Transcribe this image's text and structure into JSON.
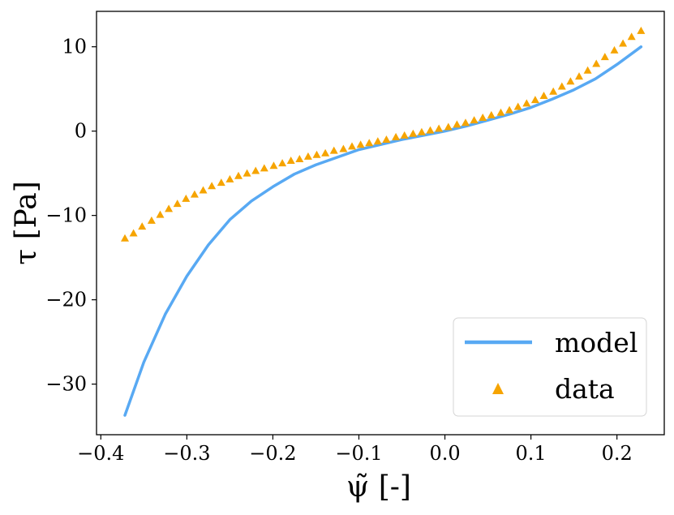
{
  "chart_data": {
    "type": "line",
    "title": "",
    "xlabel": "ψ̃ [-]",
    "ylabel": "τ [Pa]",
    "xlim": [
      -0.405,
      0.255
    ],
    "ylim": [
      -36,
      14.2
    ],
    "xticks": [
      -0.4,
      -0.3,
      -0.2,
      -0.1,
      0.0,
      0.1,
      0.2
    ],
    "xtick_labels": [
      "−0.4",
      "−0.3",
      "−0.2",
      "−0.1",
      "0.0",
      "0.1",
      "0.2"
    ],
    "yticks": [
      -30,
      -20,
      -10,
      0,
      10
    ],
    "ytick_labels": [
      "−30",
      "−20",
      "−10",
      "0",
      "10"
    ],
    "grid": false,
    "legend_position": "bottom-right",
    "series": [
      {
        "name": "model",
        "kind": "line",
        "color": "#58a9f3",
        "x": [
          -0.372,
          -0.35,
          -0.325,
          -0.3,
          -0.275,
          -0.25,
          -0.225,
          -0.2,
          -0.175,
          -0.15,
          -0.125,
          -0.1,
          -0.075,
          -0.05,
          -0.025,
          0.0,
          0.025,
          0.05,
          0.075,
          0.1,
          0.125,
          0.15,
          0.175,
          0.2,
          0.228
        ],
        "y": [
          -33.7,
          -27.4,
          -21.7,
          -17.2,
          -13.5,
          -10.5,
          -8.3,
          -6.6,
          -5.1,
          -4.0,
          -3.1,
          -2.2,
          -1.6,
          -1.0,
          -0.5,
          0.0,
          0.6,
          1.3,
          2.0,
          2.8,
          3.8,
          4.9,
          6.2,
          7.9,
          10.0
        ]
      },
      {
        "name": "data",
        "kind": "scatter",
        "marker": "triangle",
        "color": "#f6a400",
        "x": [
          -0.372,
          -0.362,
          -0.352,
          -0.341,
          -0.331,
          -0.321,
          -0.311,
          -0.301,
          -0.291,
          -0.281,
          -0.271,
          -0.26,
          -0.25,
          -0.24,
          -0.23,
          -0.22,
          -0.21,
          -0.199,
          -0.189,
          -0.179,
          -0.169,
          -0.159,
          -0.149,
          -0.139,
          -0.129,
          -0.118,
          -0.108,
          -0.098,
          -0.088,
          -0.078,
          -0.068,
          -0.057,
          -0.047,
          -0.037,
          -0.027,
          -0.017,
          -0.007,
          0.004,
          0.014,
          0.024,
          0.034,
          0.044,
          0.054,
          0.065,
          0.075,
          0.085,
          0.095,
          0.105,
          0.115,
          0.126,
          0.136,
          0.146,
          0.156,
          0.166,
          0.176,
          0.186,
          0.197,
          0.207,
          0.217,
          0.228
        ],
        "y": [
          -12.7,
          -12.1,
          -11.3,
          -10.6,
          -9.9,
          -9.2,
          -8.6,
          -8.0,
          -7.5,
          -7.0,
          -6.5,
          -6.1,
          -5.7,
          -5.3,
          -5.0,
          -4.7,
          -4.4,
          -4.1,
          -3.8,
          -3.5,
          -3.3,
          -3.0,
          -2.8,
          -2.6,
          -2.3,
          -2.1,
          -1.8,
          -1.6,
          -1.4,
          -1.2,
          -1.0,
          -0.7,
          -0.5,
          -0.3,
          -0.1,
          0.1,
          0.3,
          0.5,
          0.8,
          1.0,
          1.3,
          1.6,
          1.9,
          2.2,
          2.5,
          2.9,
          3.3,
          3.7,
          4.2,
          4.7,
          5.3,
          5.9,
          6.5,
          7.2,
          8.0,
          8.8,
          9.6,
          10.4,
          11.2,
          11.9
        ]
      }
    ]
  }
}
